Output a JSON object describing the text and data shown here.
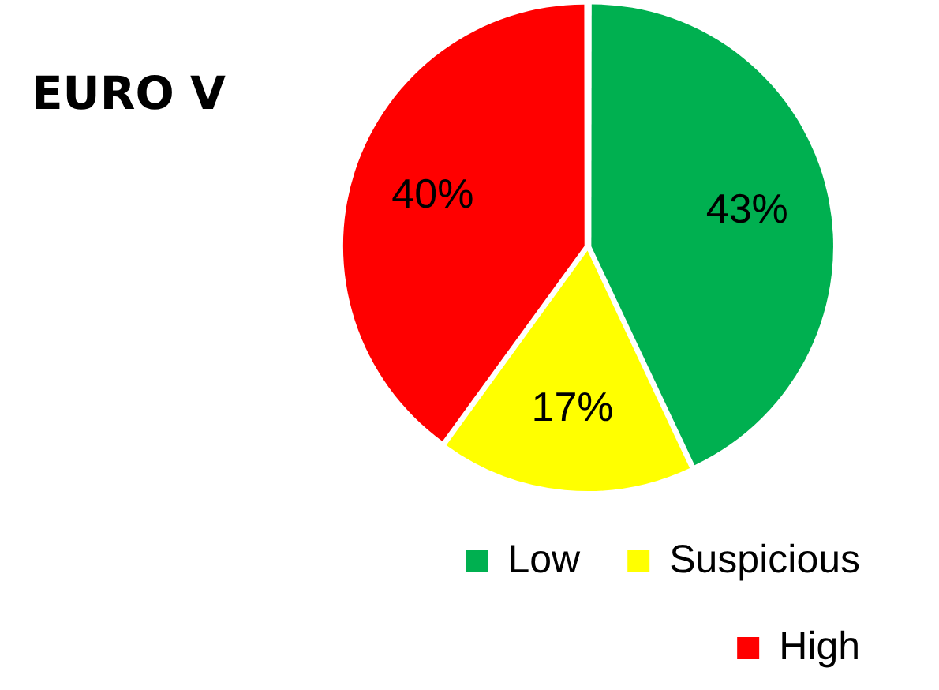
{
  "chart_data": {
    "type": "pie",
    "title": "EURO V",
    "categories": [
      "Low",
      "Suspicious",
      "High"
    ],
    "values": [
      43,
      17,
      40
    ],
    "colors": [
      "#00b050",
      "#ffff00",
      "#ff0000"
    ],
    "value_labels": [
      "43%",
      "17%",
      "40%"
    ],
    "legend": "bottom right"
  }
}
